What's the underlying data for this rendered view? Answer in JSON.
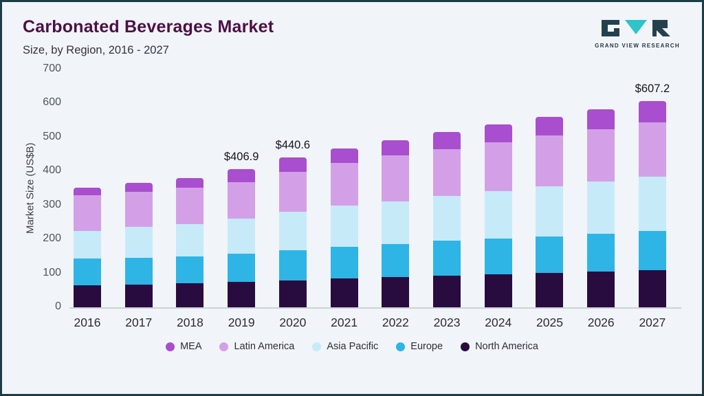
{
  "header": {
    "title": "Carbonated Beverages Market",
    "subtitle": "Size, by Region, 2016 - 2027",
    "logo_text": "GRAND VIEW RESEARCH"
  },
  "chart_data": {
    "type": "bar",
    "stacked": true,
    "title": "Carbonated Beverages Market Size, by Region, 2016 - 2027",
    "xlabel": "",
    "ylabel": "Market Size (US$B)",
    "ylim": [
      0,
      700
    ],
    "yticks": [
      0,
      100,
      200,
      300,
      400,
      500,
      600,
      700
    ],
    "grid": false,
    "legend_position": "bottom",
    "categories": [
      "2016",
      "2017",
      "2018",
      "2019",
      "2020",
      "2021",
      "2022",
      "2023",
      "2024",
      "2025",
      "2026",
      "2027"
    ],
    "series": [
      {
        "name": "North America",
        "color": "#280c40",
        "values": [
          65,
          67,
          70,
          74,
          79,
          85,
          90,
          94,
          97,
          101,
          105,
          110
        ]
      },
      {
        "name": "Europe",
        "color": "#2fb4e6",
        "values": [
          78,
          79,
          80,
          83,
          89,
          93,
          97,
          102,
          106,
          108,
          112,
          115
        ]
      },
      {
        "name": "Asia Pacific",
        "color": "#c7eaf8",
        "values": [
          82,
          91,
          95,
          105,
          114,
          121,
          125,
          131,
          139,
          148,
          153,
          160
        ]
      },
      {
        "name": "Latin America",
        "color": "#d3a0e8",
        "values": [
          105,
          103,
          108,
          106,
          116,
          126,
          136,
          138,
          143,
          148,
          155,
          160
        ]
      },
      {
        "name": "MEA",
        "color": "#a84ecf",
        "values": [
          22,
          26,
          28,
          38.9,
          42.6,
          42,
          44,
          51,
          53,
          55,
          58,
          62.2
        ]
      }
    ],
    "totals": [
      352,
      366,
      381,
      406.9,
      440.6,
      467,
      492,
      516,
      538,
      560,
      583,
      607.2
    ],
    "annotations": [
      {
        "category": "2019",
        "text": "$406.9"
      },
      {
        "category": "2020",
        "text": "$440.6"
      },
      {
        "category": "2027",
        "text": "$607.2"
      }
    ],
    "legend": [
      "MEA",
      "Latin America",
      "Asia Pacific",
      "Europe",
      "North America"
    ]
  }
}
